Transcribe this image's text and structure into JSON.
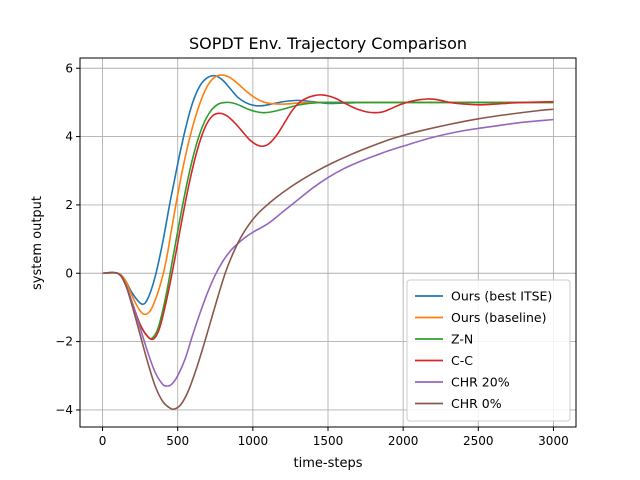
{
  "chart_data": {
    "type": "line",
    "title": "SOPDT Env. Trajectory Comparison",
    "xlabel": "time-steps",
    "ylabel": "system output",
    "xlim": [
      -150,
      3150
    ],
    "ylim": [
      -4.5,
      6.3
    ],
    "xticks": [
      0,
      500,
      1000,
      1500,
      2000,
      2500,
      3000
    ],
    "yticks": [
      -4,
      -2,
      0,
      2,
      4,
      6
    ],
    "ytick_labels": [
      "−4",
      "−2",
      "0",
      "2",
      "4",
      "6"
    ],
    "grid": true,
    "legend_position": "lower-right",
    "series": [
      {
        "name": "Ours (best ITSE)",
        "color": "#1f77b4",
        "points": [
          [
            0,
            0
          ],
          [
            100,
            0
          ],
          [
            150,
            -0.2
          ],
          [
            200,
            -0.6
          ],
          [
            260,
            -0.9
          ],
          [
            300,
            -0.75
          ],
          [
            350,
            -0.1
          ],
          [
            400,
            0.9
          ],
          [
            450,
            2.1
          ],
          [
            500,
            3.2
          ],
          [
            550,
            4.2
          ],
          [
            600,
            5.0
          ],
          [
            650,
            5.5
          ],
          [
            700,
            5.73
          ],
          [
            750,
            5.78
          ],
          [
            800,
            5.65
          ],
          [
            850,
            5.4
          ],
          [
            900,
            5.15
          ],
          [
            950,
            5.0
          ],
          [
            1000,
            4.92
          ],
          [
            1050,
            4.9
          ],
          [
            1100,
            4.93
          ],
          [
            1200,
            5.02
          ],
          [
            1300,
            5.06
          ],
          [
            1400,
            5.02
          ],
          [
            1500,
            4.97
          ],
          [
            1600,
            4.98
          ],
          [
            1800,
            5.0
          ],
          [
            2200,
            5.0
          ],
          [
            3000,
            5.0
          ]
        ]
      },
      {
        "name": "Ours (baseline)",
        "color": "#ff7f0e",
        "points": [
          [
            0,
            0
          ],
          [
            100,
            0
          ],
          [
            150,
            -0.2
          ],
          [
            200,
            -0.7
          ],
          [
            250,
            -1.1
          ],
          [
            290,
            -1.2
          ],
          [
            330,
            -1.0
          ],
          [
            380,
            -0.4
          ],
          [
            420,
            0.3
          ],
          [
            460,
            1.3
          ],
          [
            500,
            2.3
          ],
          [
            550,
            3.4
          ],
          [
            600,
            4.3
          ],
          [
            650,
            5.0
          ],
          [
            700,
            5.5
          ],
          [
            750,
            5.75
          ],
          [
            800,
            5.8
          ],
          [
            850,
            5.72
          ],
          [
            900,
            5.55
          ],
          [
            950,
            5.35
          ],
          [
            1000,
            5.18
          ],
          [
            1050,
            5.05
          ],
          [
            1100,
            4.98
          ],
          [
            1200,
            4.95
          ],
          [
            1300,
            4.98
          ],
          [
            1400,
            5.0
          ],
          [
            1600,
            5.0
          ],
          [
            2000,
            5.0
          ],
          [
            3000,
            5.0
          ]
        ]
      },
      {
        "name": "Z-N",
        "color": "#2ca02c",
        "points": [
          [
            0,
            0
          ],
          [
            100,
            0
          ],
          [
            150,
            -0.3
          ],
          [
            200,
            -0.9
          ],
          [
            250,
            -1.5
          ],
          [
            300,
            -1.85
          ],
          [
            330,
            -1.9
          ],
          [
            370,
            -1.6
          ],
          [
            420,
            -0.7
          ],
          [
            470,
            0.5
          ],
          [
            520,
            1.7
          ],
          [
            570,
            2.8
          ],
          [
            620,
            3.7
          ],
          [
            670,
            4.35
          ],
          [
            720,
            4.75
          ],
          [
            770,
            4.95
          ],
          [
            820,
            5.0
          ],
          [
            870,
            4.98
          ],
          [
            920,
            4.9
          ],
          [
            970,
            4.8
          ],
          [
            1020,
            4.73
          ],
          [
            1070,
            4.7
          ],
          [
            1120,
            4.72
          ],
          [
            1200,
            4.8
          ],
          [
            1300,
            4.92
          ],
          [
            1400,
            4.98
          ],
          [
            1500,
            5.0
          ],
          [
            2000,
            5.0
          ],
          [
            3000,
            5.0
          ]
        ]
      },
      {
        "name": "C-C",
        "color": "#d62728",
        "points": [
          [
            0,
            0
          ],
          [
            100,
            0
          ],
          [
            150,
            -0.3
          ],
          [
            200,
            -0.9
          ],
          [
            250,
            -1.5
          ],
          [
            300,
            -1.85
          ],
          [
            340,
            -1.92
          ],
          [
            380,
            -1.6
          ],
          [
            430,
            -0.7
          ],
          [
            480,
            0.4
          ],
          [
            530,
            1.6
          ],
          [
            580,
            2.7
          ],
          [
            630,
            3.6
          ],
          [
            680,
            4.25
          ],
          [
            730,
            4.6
          ],
          [
            780,
            4.68
          ],
          [
            830,
            4.6
          ],
          [
            880,
            4.4
          ],
          [
            930,
            4.15
          ],
          [
            980,
            3.9
          ],
          [
            1030,
            3.75
          ],
          [
            1070,
            3.72
          ],
          [
            1110,
            3.8
          ],
          [
            1160,
            4.05
          ],
          [
            1210,
            4.4
          ],
          [
            1260,
            4.75
          ],
          [
            1310,
            5.0
          ],
          [
            1360,
            5.13
          ],
          [
            1410,
            5.2
          ],
          [
            1460,
            5.22
          ],
          [
            1510,
            5.18
          ],
          [
            1560,
            5.1
          ],
          [
            1610,
            4.98
          ],
          [
            1660,
            4.87
          ],
          [
            1710,
            4.78
          ],
          [
            1760,
            4.72
          ],
          [
            1810,
            4.7
          ],
          [
            1860,
            4.72
          ],
          [
            1910,
            4.8
          ],
          [
            1960,
            4.9
          ],
          [
            2010,
            4.98
          ],
          [
            2060,
            5.04
          ],
          [
            2110,
            5.08
          ],
          [
            2160,
            5.1
          ],
          [
            2210,
            5.09
          ],
          [
            2260,
            5.05
          ],
          [
            2310,
            5.0
          ],
          [
            2410,
            4.95
          ],
          [
            2510,
            4.93
          ],
          [
            2610,
            4.95
          ],
          [
            2710,
            4.98
          ],
          [
            2810,
            5.0
          ],
          [
            3000,
            5.02
          ]
        ]
      },
      {
        "name": "CHR 20%",
        "color": "#9467bd",
        "points": [
          [
            0,
            0
          ],
          [
            100,
            0
          ],
          [
            150,
            -0.3
          ],
          [
            200,
            -0.9
          ],
          [
            250,
            -1.6
          ],
          [
            300,
            -2.3
          ],
          [
            350,
            -2.9
          ],
          [
            400,
            -3.25
          ],
          [
            430,
            -3.3
          ],
          [
            460,
            -3.25
          ],
          [
            500,
            -3.0
          ],
          [
            550,
            -2.5
          ],
          [
            600,
            -1.8
          ],
          [
            650,
            -1.15
          ],
          [
            700,
            -0.55
          ],
          [
            750,
            -0.05
          ],
          [
            800,
            0.35
          ],
          [
            850,
            0.65
          ],
          [
            900,
            0.87
          ],
          [
            950,
            1.05
          ],
          [
            1000,
            1.2
          ],
          [
            1100,
            1.45
          ],
          [
            1200,
            1.8
          ],
          [
            1300,
            2.15
          ],
          [
            1400,
            2.5
          ],
          [
            1500,
            2.8
          ],
          [
            1600,
            3.05
          ],
          [
            1700,
            3.25
          ],
          [
            1800,
            3.42
          ],
          [
            1900,
            3.58
          ],
          [
            2000,
            3.72
          ],
          [
            2200,
            3.98
          ],
          [
            2400,
            4.17
          ],
          [
            2600,
            4.3
          ],
          [
            2800,
            4.42
          ],
          [
            3000,
            4.5
          ]
        ]
      },
      {
        "name": "CHR 0%",
        "color": "#8c564b",
        "points": [
          [
            0,
            0
          ],
          [
            100,
            0
          ],
          [
            150,
            -0.3
          ],
          [
            200,
            -1.0
          ],
          [
            250,
            -1.8
          ],
          [
            300,
            -2.6
          ],
          [
            350,
            -3.3
          ],
          [
            400,
            -3.75
          ],
          [
            450,
            -3.95
          ],
          [
            480,
            -3.97
          ],
          [
            520,
            -3.85
          ],
          [
            570,
            -3.45
          ],
          [
            620,
            -2.85
          ],
          [
            670,
            -2.15
          ],
          [
            720,
            -1.4
          ],
          [
            770,
            -0.65
          ],
          [
            820,
            0.05
          ],
          [
            870,
            0.6
          ],
          [
            920,
            1.05
          ],
          [
            970,
            1.4
          ],
          [
            1020,
            1.68
          ],
          [
            1070,
            1.9
          ],
          [
            1150,
            2.2
          ],
          [
            1250,
            2.52
          ],
          [
            1350,
            2.8
          ],
          [
            1450,
            3.05
          ],
          [
            1550,
            3.27
          ],
          [
            1650,
            3.47
          ],
          [
            1750,
            3.65
          ],
          [
            1850,
            3.82
          ],
          [
            1950,
            3.97
          ],
          [
            2100,
            4.15
          ],
          [
            2300,
            4.35
          ],
          [
            2500,
            4.52
          ],
          [
            2700,
            4.65
          ],
          [
            2900,
            4.76
          ],
          [
            3000,
            4.8
          ]
        ]
      }
    ]
  }
}
